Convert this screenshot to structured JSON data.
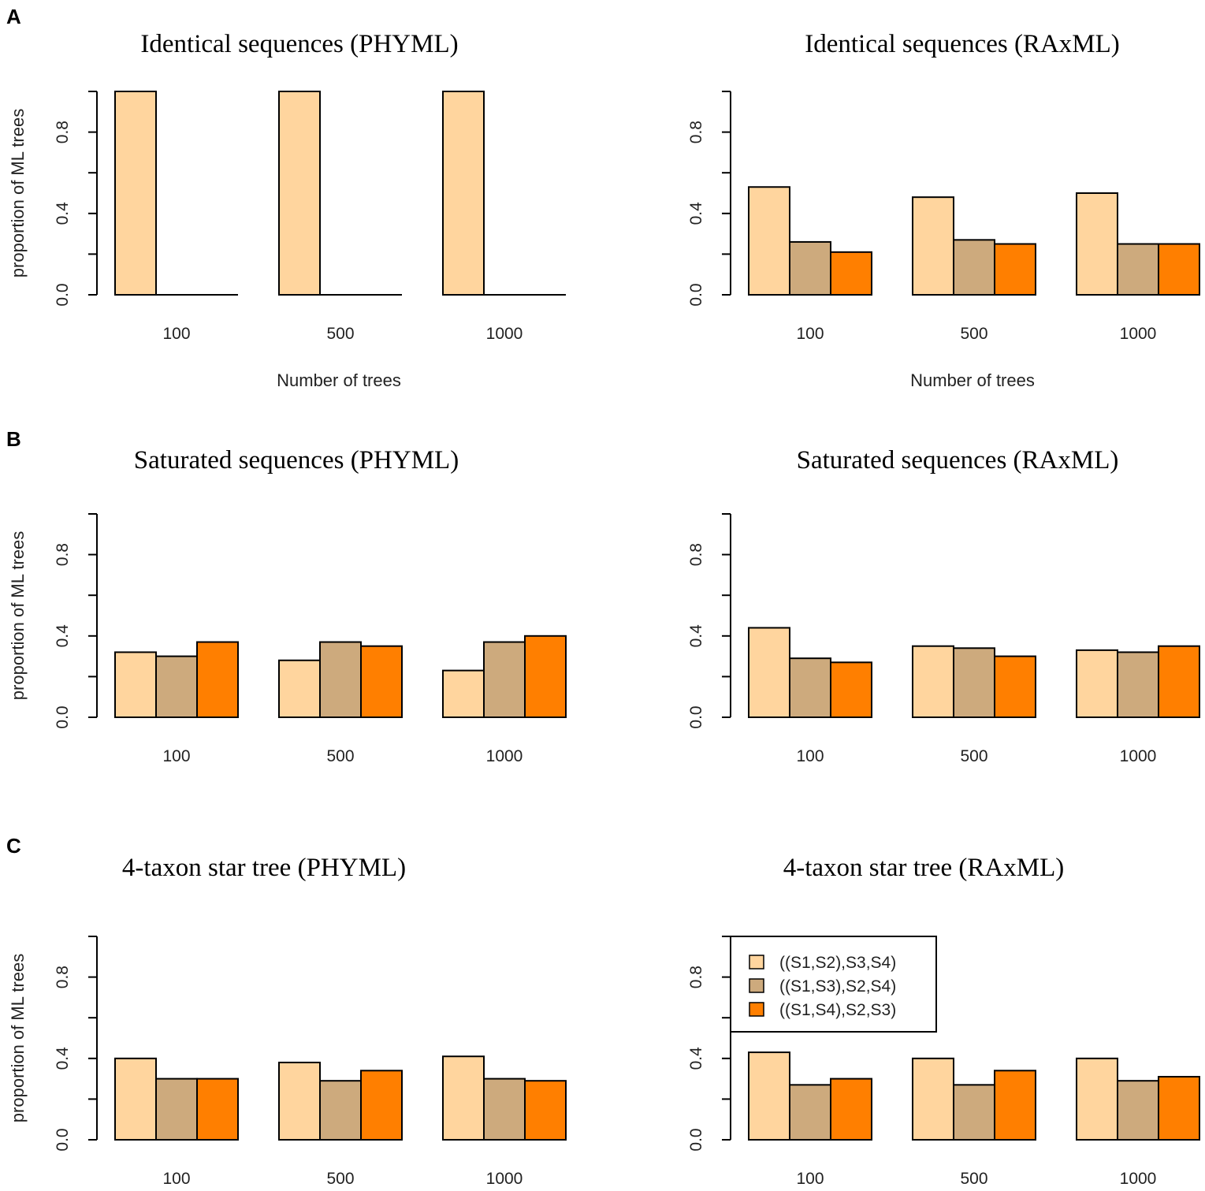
{
  "panel_letters": [
    "A",
    "B",
    "C"
  ],
  "legend": {
    "entries": [
      "((S1,S2),S3,S4)",
      "((S1,S3),S2,S4)",
      "((S1,S4),S2,S3)"
    ]
  },
  "colors": {
    "series": [
      "#FFD59E",
      "#CDAA7D",
      "#FF7F00"
    ]
  },
  "chart_data": [
    {
      "type": "bar",
      "panel": "A",
      "title": "Identical sequences (PHYML)",
      "xlabel": "Number of trees",
      "ylabel": "proportion of ML trees",
      "ylim": [
        0,
        1
      ],
      "yticks": [
        "0.0",
        "0.4",
        "0.8"
      ],
      "categories": [
        "100",
        "500",
        "1000"
      ],
      "series": [
        {
          "name": "((S1,S2),S3,S4)",
          "values": [
            1.0,
            1.0,
            1.0
          ]
        },
        {
          "name": "((S1,S3),S2,S4)",
          "values": [
            0.0,
            0.0,
            0.0
          ]
        },
        {
          "name": "((S1,S4),S2,S3)",
          "values": [
            0.0,
            0.0,
            0.0
          ]
        }
      ]
    },
    {
      "type": "bar",
      "panel": "A",
      "title": "Identical sequences (RAxML)",
      "xlabel": "Number of trees",
      "ylabel": "",
      "ylim": [
        0,
        1
      ],
      "yticks": [
        "0.0",
        "0.4",
        "0.8"
      ],
      "categories": [
        "100",
        "500",
        "1000"
      ],
      "series": [
        {
          "name": "((S1,S2),S3,S4)",
          "values": [
            0.53,
            0.48,
            0.5
          ]
        },
        {
          "name": "((S1,S3),S2,S4)",
          "values": [
            0.26,
            0.27,
            0.25
          ]
        },
        {
          "name": "((S1,S4),S2,S3)",
          "values": [
            0.21,
            0.25,
            0.25
          ]
        }
      ]
    },
    {
      "type": "bar",
      "panel": "B",
      "title": "Saturated sequences (PHYML)",
      "xlabel": "",
      "ylabel": "proportion of ML trees",
      "ylim": [
        0,
        1
      ],
      "yticks": [
        "0.0",
        "0.4",
        "0.8"
      ],
      "categories": [
        "100",
        "500",
        "1000"
      ],
      "series": [
        {
          "name": "((S1,S2),S3,S4)",
          "values": [
            0.32,
            0.28,
            0.23
          ]
        },
        {
          "name": "((S1,S3),S2,S4)",
          "values": [
            0.3,
            0.37,
            0.37
          ]
        },
        {
          "name": "((S1,S4),S2,S3)",
          "values": [
            0.37,
            0.35,
            0.4
          ]
        }
      ]
    },
    {
      "type": "bar",
      "panel": "B",
      "title": "Saturated sequences (RAxML)",
      "xlabel": "",
      "ylabel": "",
      "ylim": [
        0,
        1
      ],
      "yticks": [
        "0.0",
        "0.4",
        "0.8"
      ],
      "categories": [
        "100",
        "500",
        "1000"
      ],
      "series": [
        {
          "name": "((S1,S2),S3,S4)",
          "values": [
            0.44,
            0.35,
            0.33
          ]
        },
        {
          "name": "((S1,S3),S2,S4)",
          "values": [
            0.29,
            0.34,
            0.32
          ]
        },
        {
          "name": "((S1,S4),S2,S3)",
          "values": [
            0.27,
            0.3,
            0.35
          ]
        }
      ]
    },
    {
      "type": "bar",
      "panel": "C",
      "title": "4-taxon star tree (PHYML)",
      "xlabel": "",
      "ylabel": "proportion of ML trees",
      "ylim": [
        0,
        1
      ],
      "yticks": [
        "0.0",
        "0.4",
        "0.8"
      ],
      "categories": [
        "100",
        "500",
        "1000"
      ],
      "series": [
        {
          "name": "((S1,S2),S3,S4)",
          "values": [
            0.4,
            0.38,
            0.41
          ]
        },
        {
          "name": "((S1,S3),S2,S4)",
          "values": [
            0.3,
            0.29,
            0.3
          ]
        },
        {
          "name": "((S1,S4),S2,S3)",
          "values": [
            0.3,
            0.34,
            0.29
          ]
        }
      ]
    },
    {
      "type": "bar",
      "panel": "C",
      "title": "4-taxon star tree (RAxML)",
      "xlabel": "",
      "ylabel": "",
      "ylim": [
        0,
        1
      ],
      "yticks": [
        "0.0",
        "0.4",
        "0.8"
      ],
      "categories": [
        "100",
        "500",
        "1000"
      ],
      "legend": "top-left",
      "series": [
        {
          "name": "((S1,S2),S3,S4)",
          "values": [
            0.43,
            0.4,
            0.4
          ]
        },
        {
          "name": "((S1,S3),S2,S4)",
          "values": [
            0.27,
            0.27,
            0.29
          ]
        },
        {
          "name": "((S1,S4),S2,S3)",
          "values": [
            0.3,
            0.34,
            0.31
          ]
        }
      ]
    }
  ]
}
